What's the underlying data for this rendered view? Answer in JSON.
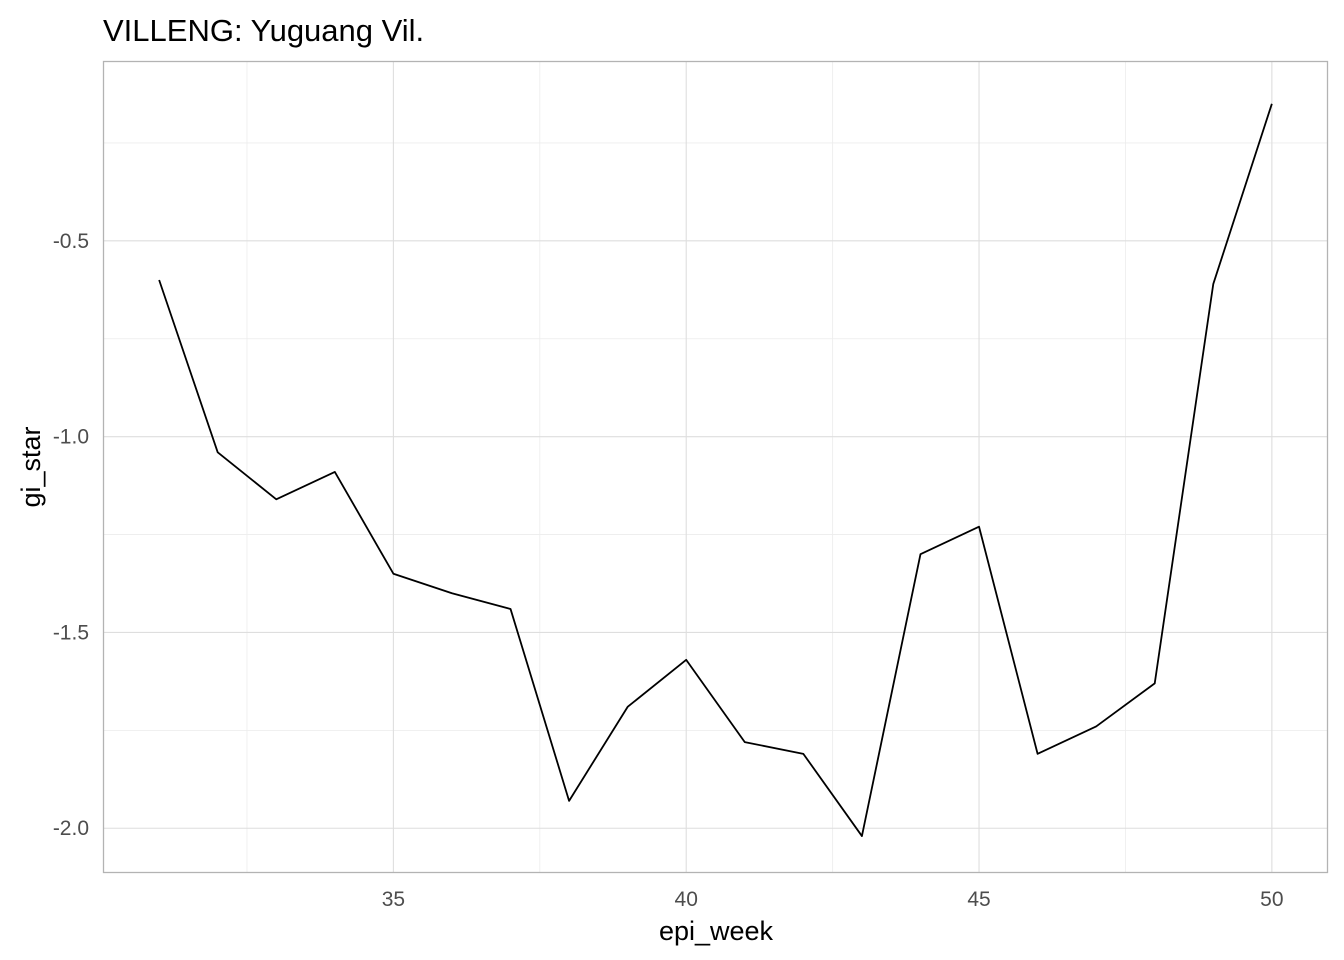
{
  "chart_data": {
    "type": "line",
    "title": "VILLENG: Yuguang Vil.",
    "xlabel": "epi_week",
    "ylabel": "gi_star",
    "x": [
      31,
      32,
      33,
      34,
      35,
      36,
      37,
      38,
      39,
      40,
      41,
      42,
      43,
      44,
      45,
      46,
      47,
      48,
      49,
      50
    ],
    "series": [
      {
        "values": [
          -0.6,
          -1.04,
          -1.16,
          -1.09,
          -1.35,
          -1.4,
          -1.44,
          -1.93,
          -1.69,
          -1.57,
          -1.78,
          -1.81,
          -2.02,
          -1.3,
          -1.23,
          -1.81,
          -1.74,
          -1.63,
          -0.61,
          -0.15
        ],
        "color": "#000000"
      }
    ],
    "xlim": [
      30.05,
      50.95
    ],
    "ylim": [
      -2.113,
      -0.042
    ],
    "x_ticks": [
      35,
      40,
      45,
      50
    ],
    "x_tick_labels": [
      "35",
      "40",
      "45",
      "50"
    ],
    "y_ticks": [
      -2.0,
      -1.5,
      -1.0,
      -0.5
    ],
    "y_tick_labels": [
      "-2.0",
      "-1.5",
      "-1.0",
      "-0.5"
    ],
    "grid": true,
    "legend": "none"
  }
}
